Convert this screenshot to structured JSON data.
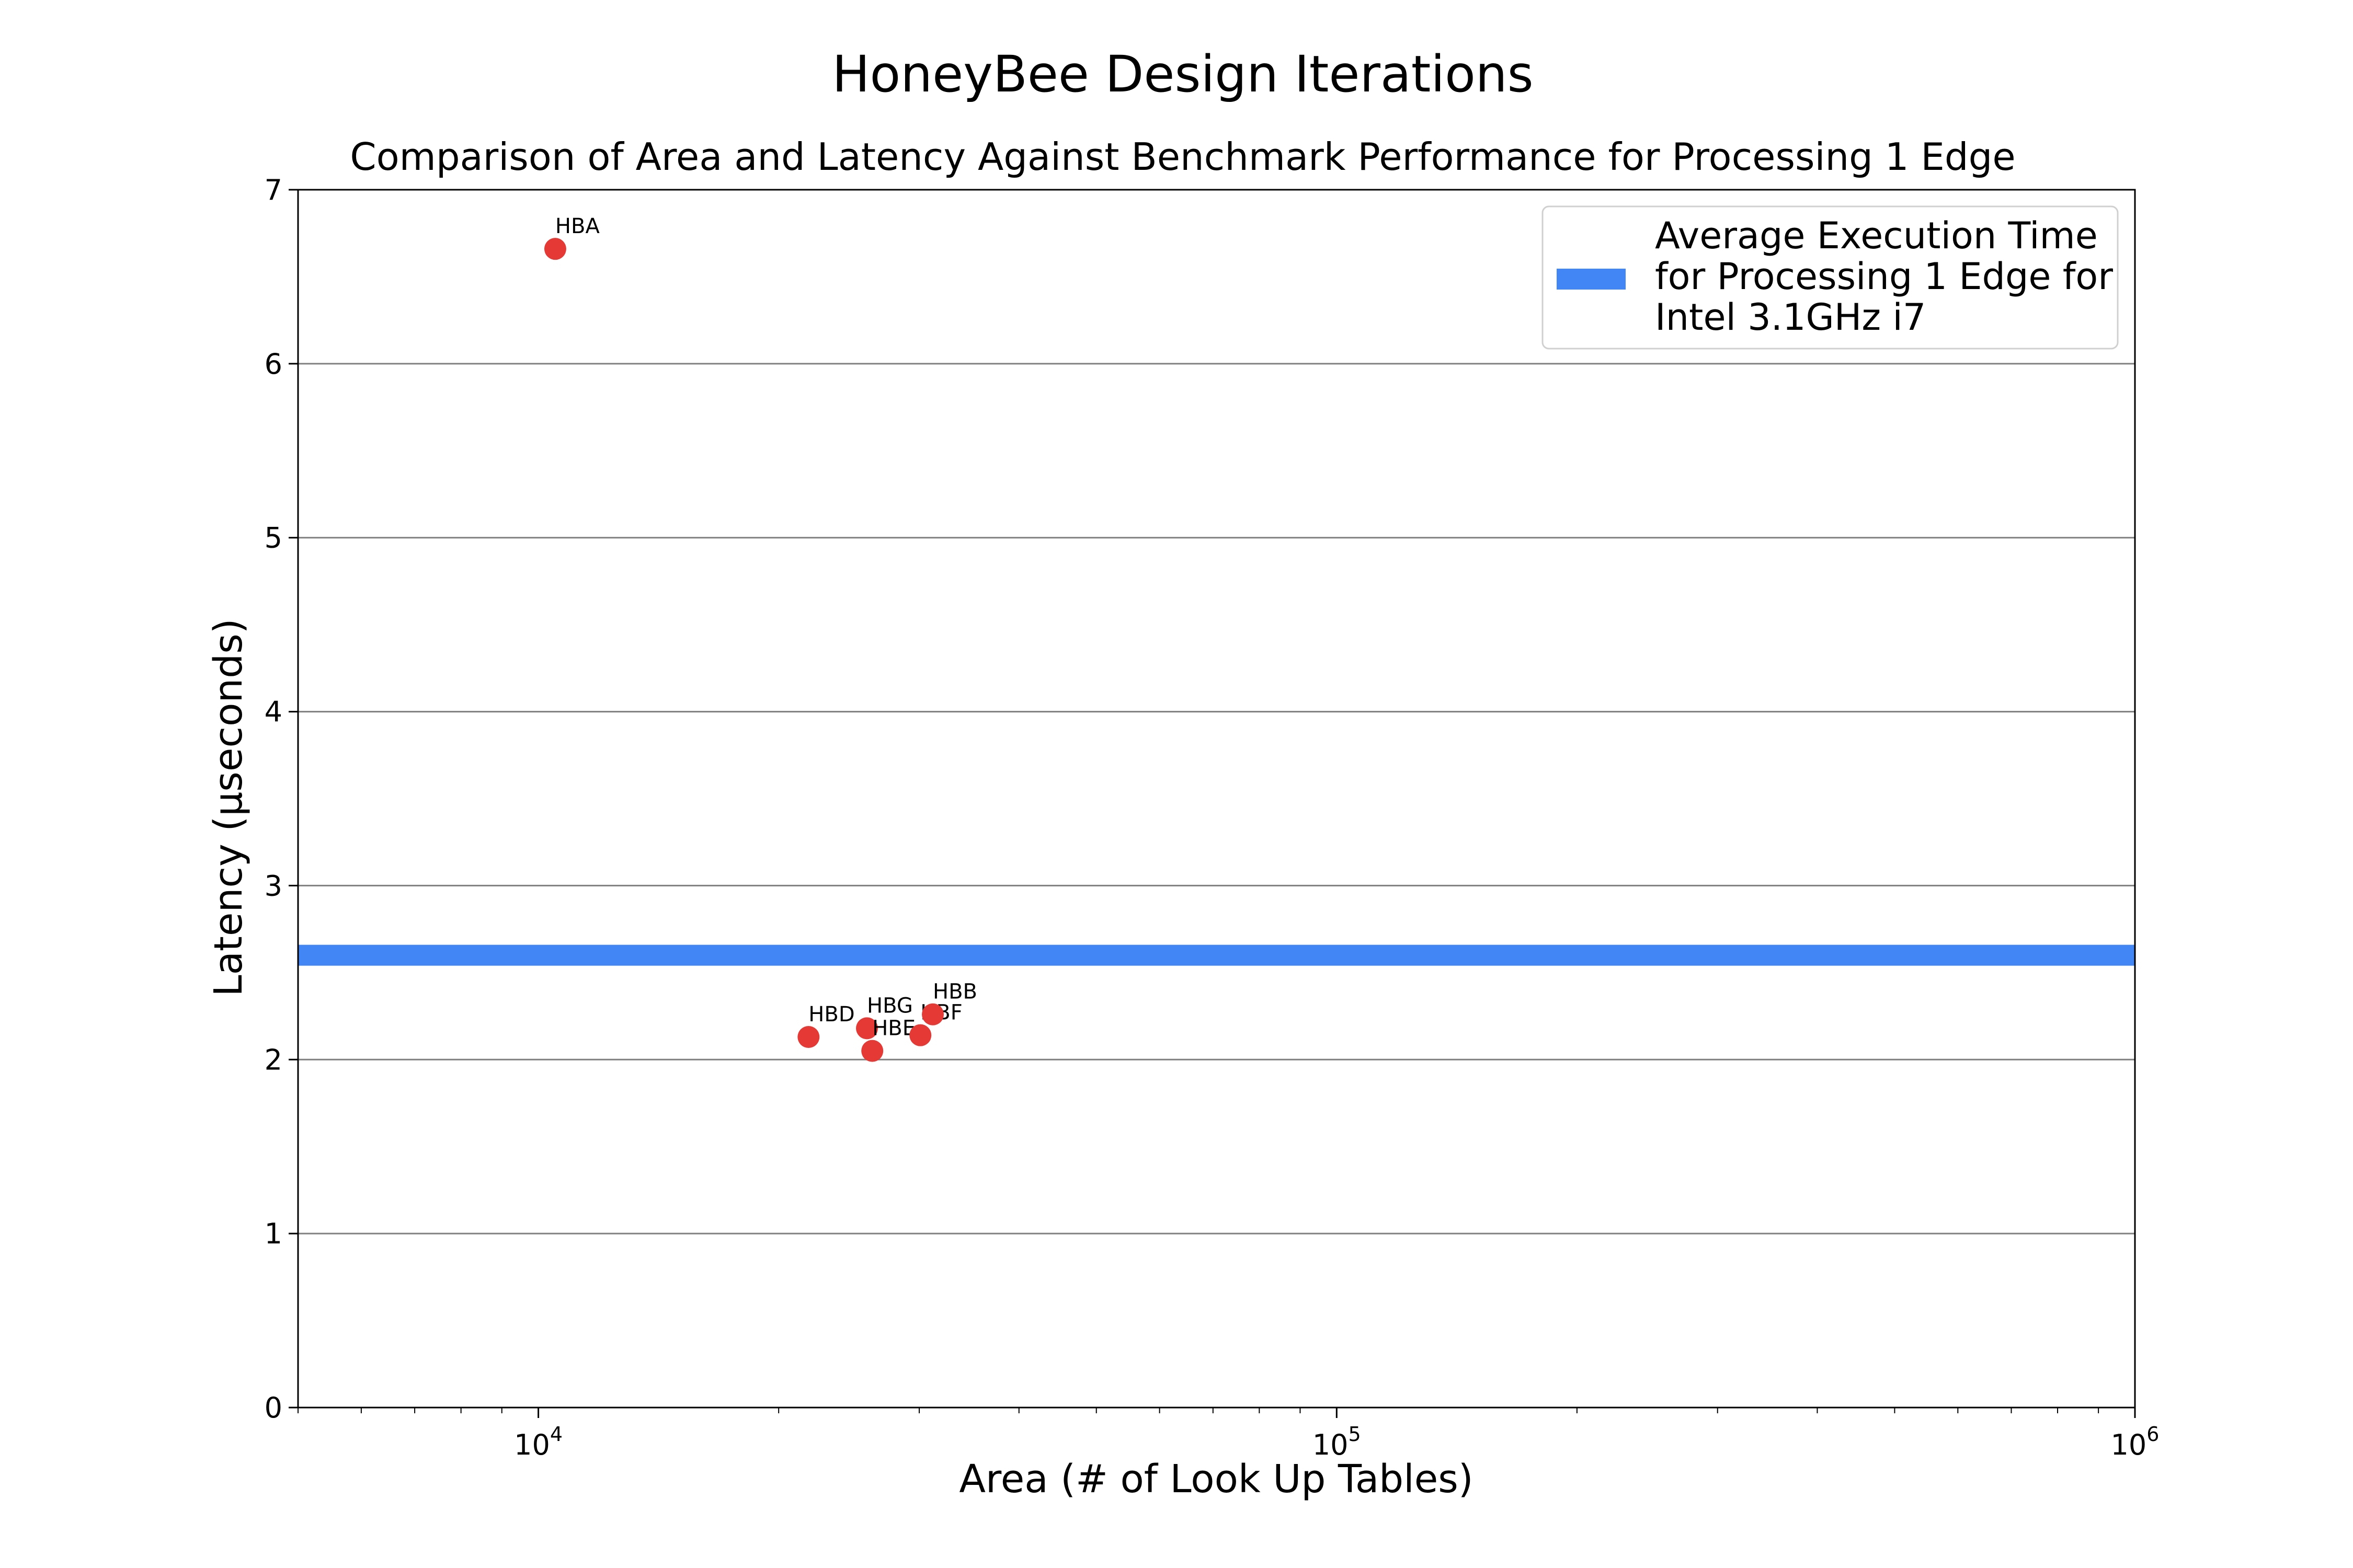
{
  "suptitle": "HoneyBee Design Iterations",
  "chart_data": {
    "type": "scatter",
    "title": "Comparison of Area and Latency Against Benchmark Performance for Processing 1 Edge",
    "xlabel": "Area (# of Look Up Tables)",
    "ylabel": "Latency (μseconds)",
    "xscale": "log",
    "xlim": [
      5000,
      1000000
    ],
    "ylim": [
      0,
      7
    ],
    "xticks": [
      {
        "base": "10",
        "exp": "4",
        "value": 10000
      },
      {
        "base": "10",
        "exp": "5",
        "value": 100000
      },
      {
        "base": "10",
        "exp": "6",
        "value": 1000000
      }
    ],
    "yticks": [
      "0",
      "1",
      "2",
      "3",
      "4",
      "5",
      "6",
      "7"
    ],
    "grid": "horizontal",
    "point_color": "#e53935",
    "points": [
      {
        "label": "HBA",
        "x": 10500,
        "y": 6.66
      },
      {
        "label": "HBD",
        "x": 21800,
        "y": 2.13
      },
      {
        "label": "HBG",
        "x": 25800,
        "y": 2.18
      },
      {
        "label": "HBE",
        "x": 26200,
        "y": 2.05
      },
      {
        "label": "HBF",
        "x": 30100,
        "y": 2.14
      },
      {
        "label": "HBB",
        "x": 31200,
        "y": 2.26
      }
    ],
    "reference_line": {
      "y": 2.6,
      "color": "#4285f4"
    },
    "legend": {
      "position": "top-right",
      "lines": [
        "Average Execution Time",
        "for Processing 1 Edge for",
        "Intel 3.1GHz i7"
      ]
    }
  }
}
